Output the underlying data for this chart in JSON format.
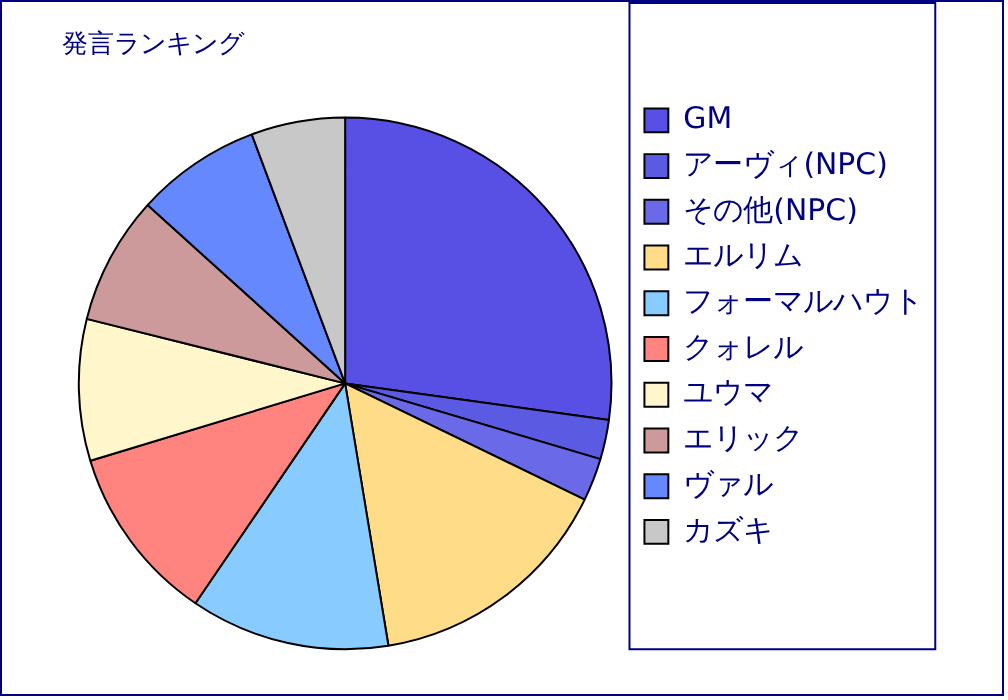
{
  "chart_data": {
    "type": "pie",
    "title": "発言ランキング",
    "categories": [
      "GM",
      "アーヴィ(NPC)",
      "その他(NPC)",
      "エルリム",
      "フォーマルハウト",
      "クォレル",
      "ユウマ",
      "エリック",
      "ヴァル",
      "カズキ"
    ],
    "values": [
      27.2,
      2.4,
      2.6,
      15.2,
      12.1,
      10.8,
      8.6,
      7.8,
      7.6,
      5.7
    ],
    "colors": [
      "#5850e4",
      "#5a5ae2",
      "#6a6ae8",
      "#ffdd88",
      "#88ccff",
      "#ff8480",
      "#fff6cc",
      "#cc9a9a",
      "#6688ff",
      "#c8c8c8"
    ],
    "legend": "right"
  }
}
